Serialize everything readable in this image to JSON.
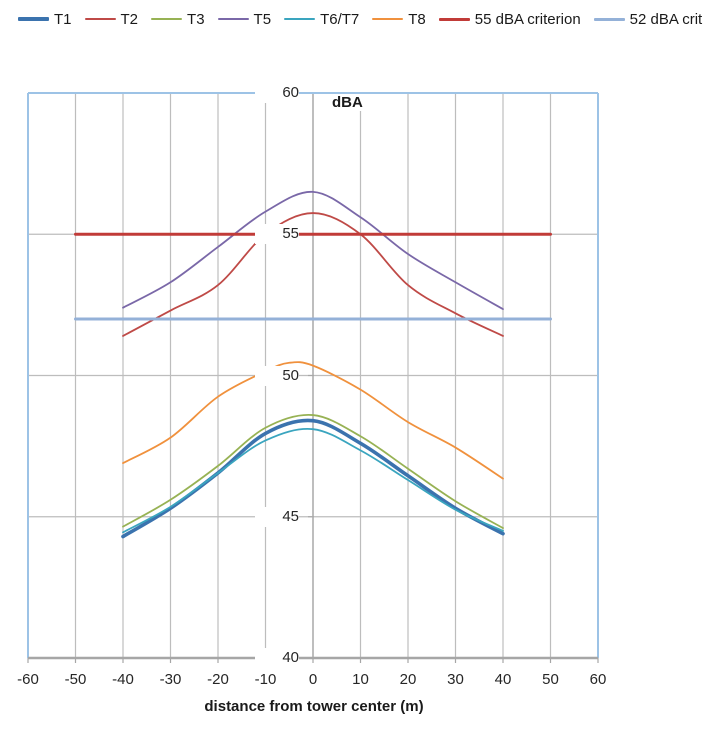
{
  "chart_data": {
    "type": "line",
    "title": "",
    "ylabel": "dBA",
    "xlabel": "distance from tower center (m)",
    "xlim": [
      -60,
      60
    ],
    "ylim": [
      40,
      60
    ],
    "x_ticks": [
      -60,
      -50,
      -40,
      -30,
      -20,
      -10,
      0,
      10,
      20,
      30,
      40,
      50,
      60
    ],
    "y_ticks": [
      60,
      55,
      50,
      45,
      40
    ],
    "grid": true,
    "legend_position": "top",
    "colors": {
      "grid": "#bdbdbd",
      "axis": "#a6a6a6",
      "zero_axis": "#a8a8a8",
      "plot_border": "#9dc3e6",
      "text": "#262626",
      "background": "#ffffff"
    },
    "series": [
      {
        "name": "T1",
        "color": "#3b73ae",
        "width": 3.6,
        "smooth": true,
        "x": [
          -40,
          -30,
          -20,
          -10,
          0,
          10,
          20,
          30,
          40
        ],
        "y": [
          44.3,
          45.3,
          46.55,
          47.95,
          48.4,
          47.6,
          46.45,
          45.3,
          44.4
        ]
      },
      {
        "name": "T2",
        "color": "#bf4a47",
        "width": 1.8,
        "smooth": true,
        "x": [
          -40,
          -30,
          -20,
          -10,
          0,
          10,
          20,
          30,
          40
        ],
        "y": [
          51.4,
          52.3,
          53.2,
          55.0,
          55.75,
          55.0,
          53.2,
          52.2,
          51.4
        ]
      },
      {
        "name": "T3",
        "color": "#97b254",
        "width": 1.8,
        "smooth": true,
        "x": [
          -40,
          -30,
          -20,
          -10,
          0,
          10,
          20,
          30,
          40
        ],
        "y": [
          44.65,
          45.6,
          46.8,
          48.15,
          48.6,
          47.85,
          46.7,
          45.55,
          44.6
        ]
      },
      {
        "name": "T5",
        "color": "#7a68a8",
        "width": 1.8,
        "smooth": true,
        "x": [
          -40,
          -30,
          -20,
          -10,
          0,
          10,
          20,
          30,
          40
        ],
        "y": [
          52.4,
          53.3,
          54.55,
          55.8,
          56.5,
          55.6,
          54.3,
          53.3,
          52.35
        ]
      },
      {
        "name": "T6/T7",
        "color": "#3aa5bf",
        "width": 1.8,
        "smooth": true,
        "x": [
          -40,
          -30,
          -20,
          -10,
          0,
          10,
          20,
          30,
          40
        ],
        "y": [
          44.45,
          45.35,
          46.55,
          47.7,
          48.1,
          47.35,
          46.3,
          45.25,
          44.5
        ]
      },
      {
        "name": "T8",
        "color": "#f0913d",
        "width": 1.8,
        "smooth": true,
        "x": [
          -40,
          -30,
          -20,
          -10,
          -5,
          0,
          10,
          20,
          30,
          40
        ],
        "y": [
          46.9,
          47.8,
          49.25,
          50.15,
          50.45,
          50.35,
          49.5,
          48.35,
          47.45,
          46.35
        ]
      },
      {
        "name": "55 dBA criterion",
        "color": "#c13b38",
        "width": 3,
        "smooth": false,
        "x": [
          -50,
          50
        ],
        "y": [
          55,
          55
        ]
      },
      {
        "name": "52 dBA crit",
        "color": "#94b1d8",
        "width": 3,
        "smooth": false,
        "x": [
          -50,
          50
        ],
        "y": [
          52,
          52
        ]
      }
    ]
  }
}
